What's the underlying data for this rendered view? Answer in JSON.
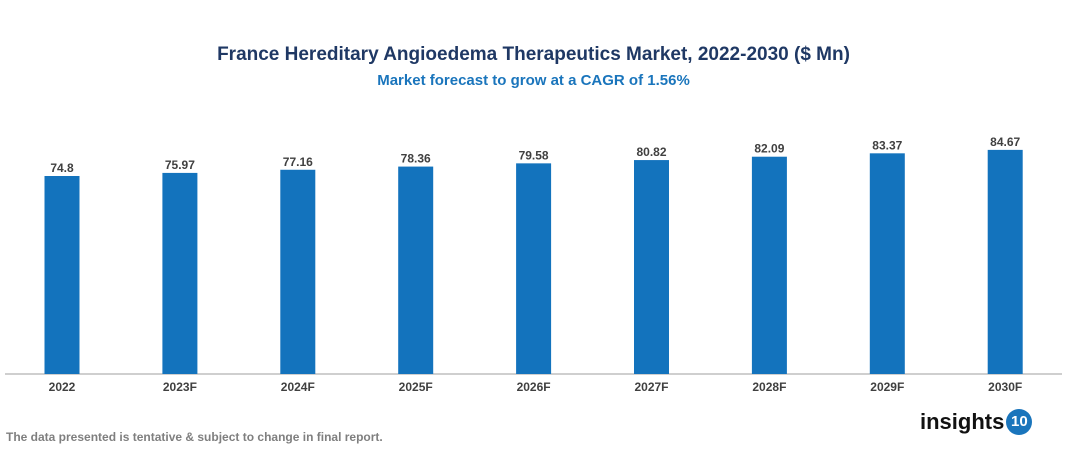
{
  "chart_data": {
    "type": "bar",
    "title": "France Hereditary Angioedema Therapeutics Market, 2022-2030 ($ Mn)",
    "subtitle": "Market forecast to grow at a CAGR of 1.56%",
    "categories": [
      "2022",
      "2023F",
      "2024F",
      "2025F",
      "2026F",
      "2027F",
      "2028F",
      "2029F",
      "2030F"
    ],
    "values": [
      74.8,
      75.97,
      77.16,
      78.36,
      79.58,
      80.82,
      82.09,
      83.37,
      84.67
    ],
    "xlabel": "",
    "ylabel": "",
    "ylim": [
      0,
      85
    ],
    "grid": false,
    "bar_color": "#1373bd",
    "data_labels": true
  },
  "footer": "The data presented is tentative & subject to change in final report.",
  "logo": {
    "text": "insights",
    "badge": "10"
  }
}
